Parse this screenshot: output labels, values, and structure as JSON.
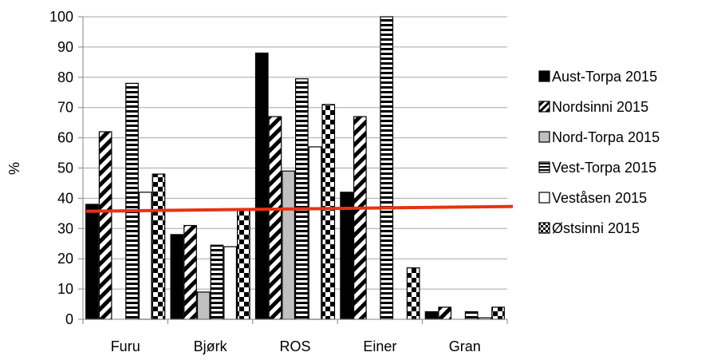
{
  "chart_data": {
    "type": "bar",
    "title": "",
    "xlabel": "",
    "ylabel": "%",
    "ylim": [
      0,
      100
    ],
    "yticks": [
      0,
      10,
      20,
      30,
      40,
      50,
      60,
      70,
      80,
      90,
      100
    ],
    "grid": true,
    "legend_position": "right",
    "categories": [
      "Furu",
      "Bjørk",
      "ROS",
      "Einer",
      "Gran"
    ],
    "series": [
      {
        "name": "Aust-Torpa 2015",
        "pattern": "solid",
        "values": [
          38,
          28,
          88,
          42,
          2.5
        ]
      },
      {
        "name": "Nordsinni 2015",
        "pattern": "diagonal",
        "values": [
          62,
          31,
          67,
          67,
          4
        ]
      },
      {
        "name": "Nord-Torpa 2015",
        "pattern": "gray",
        "values": [
          0,
          9,
          49,
          0,
          0
        ]
      },
      {
        "name": "Vest-Torpa 2015",
        "pattern": "horizontal",
        "values": [
          78,
          24.5,
          79.5,
          100,
          2.5
        ]
      },
      {
        "name": "Veståsen 2015",
        "pattern": "white",
        "values": [
          42,
          24,
          57,
          0,
          0.5
        ]
      },
      {
        "name": "Østsinni 2015",
        "pattern": "checker",
        "values": [
          48,
          36,
          71,
          17,
          4
        ]
      }
    ],
    "reference_line": {
      "value": 36.5,
      "color": "#e63312"
    },
    "colors": {
      "bar_dark": "#000000",
      "bar_gray": "#c0c0c0",
      "grid": "#a6a6a6",
      "axis": "#868686"
    }
  }
}
